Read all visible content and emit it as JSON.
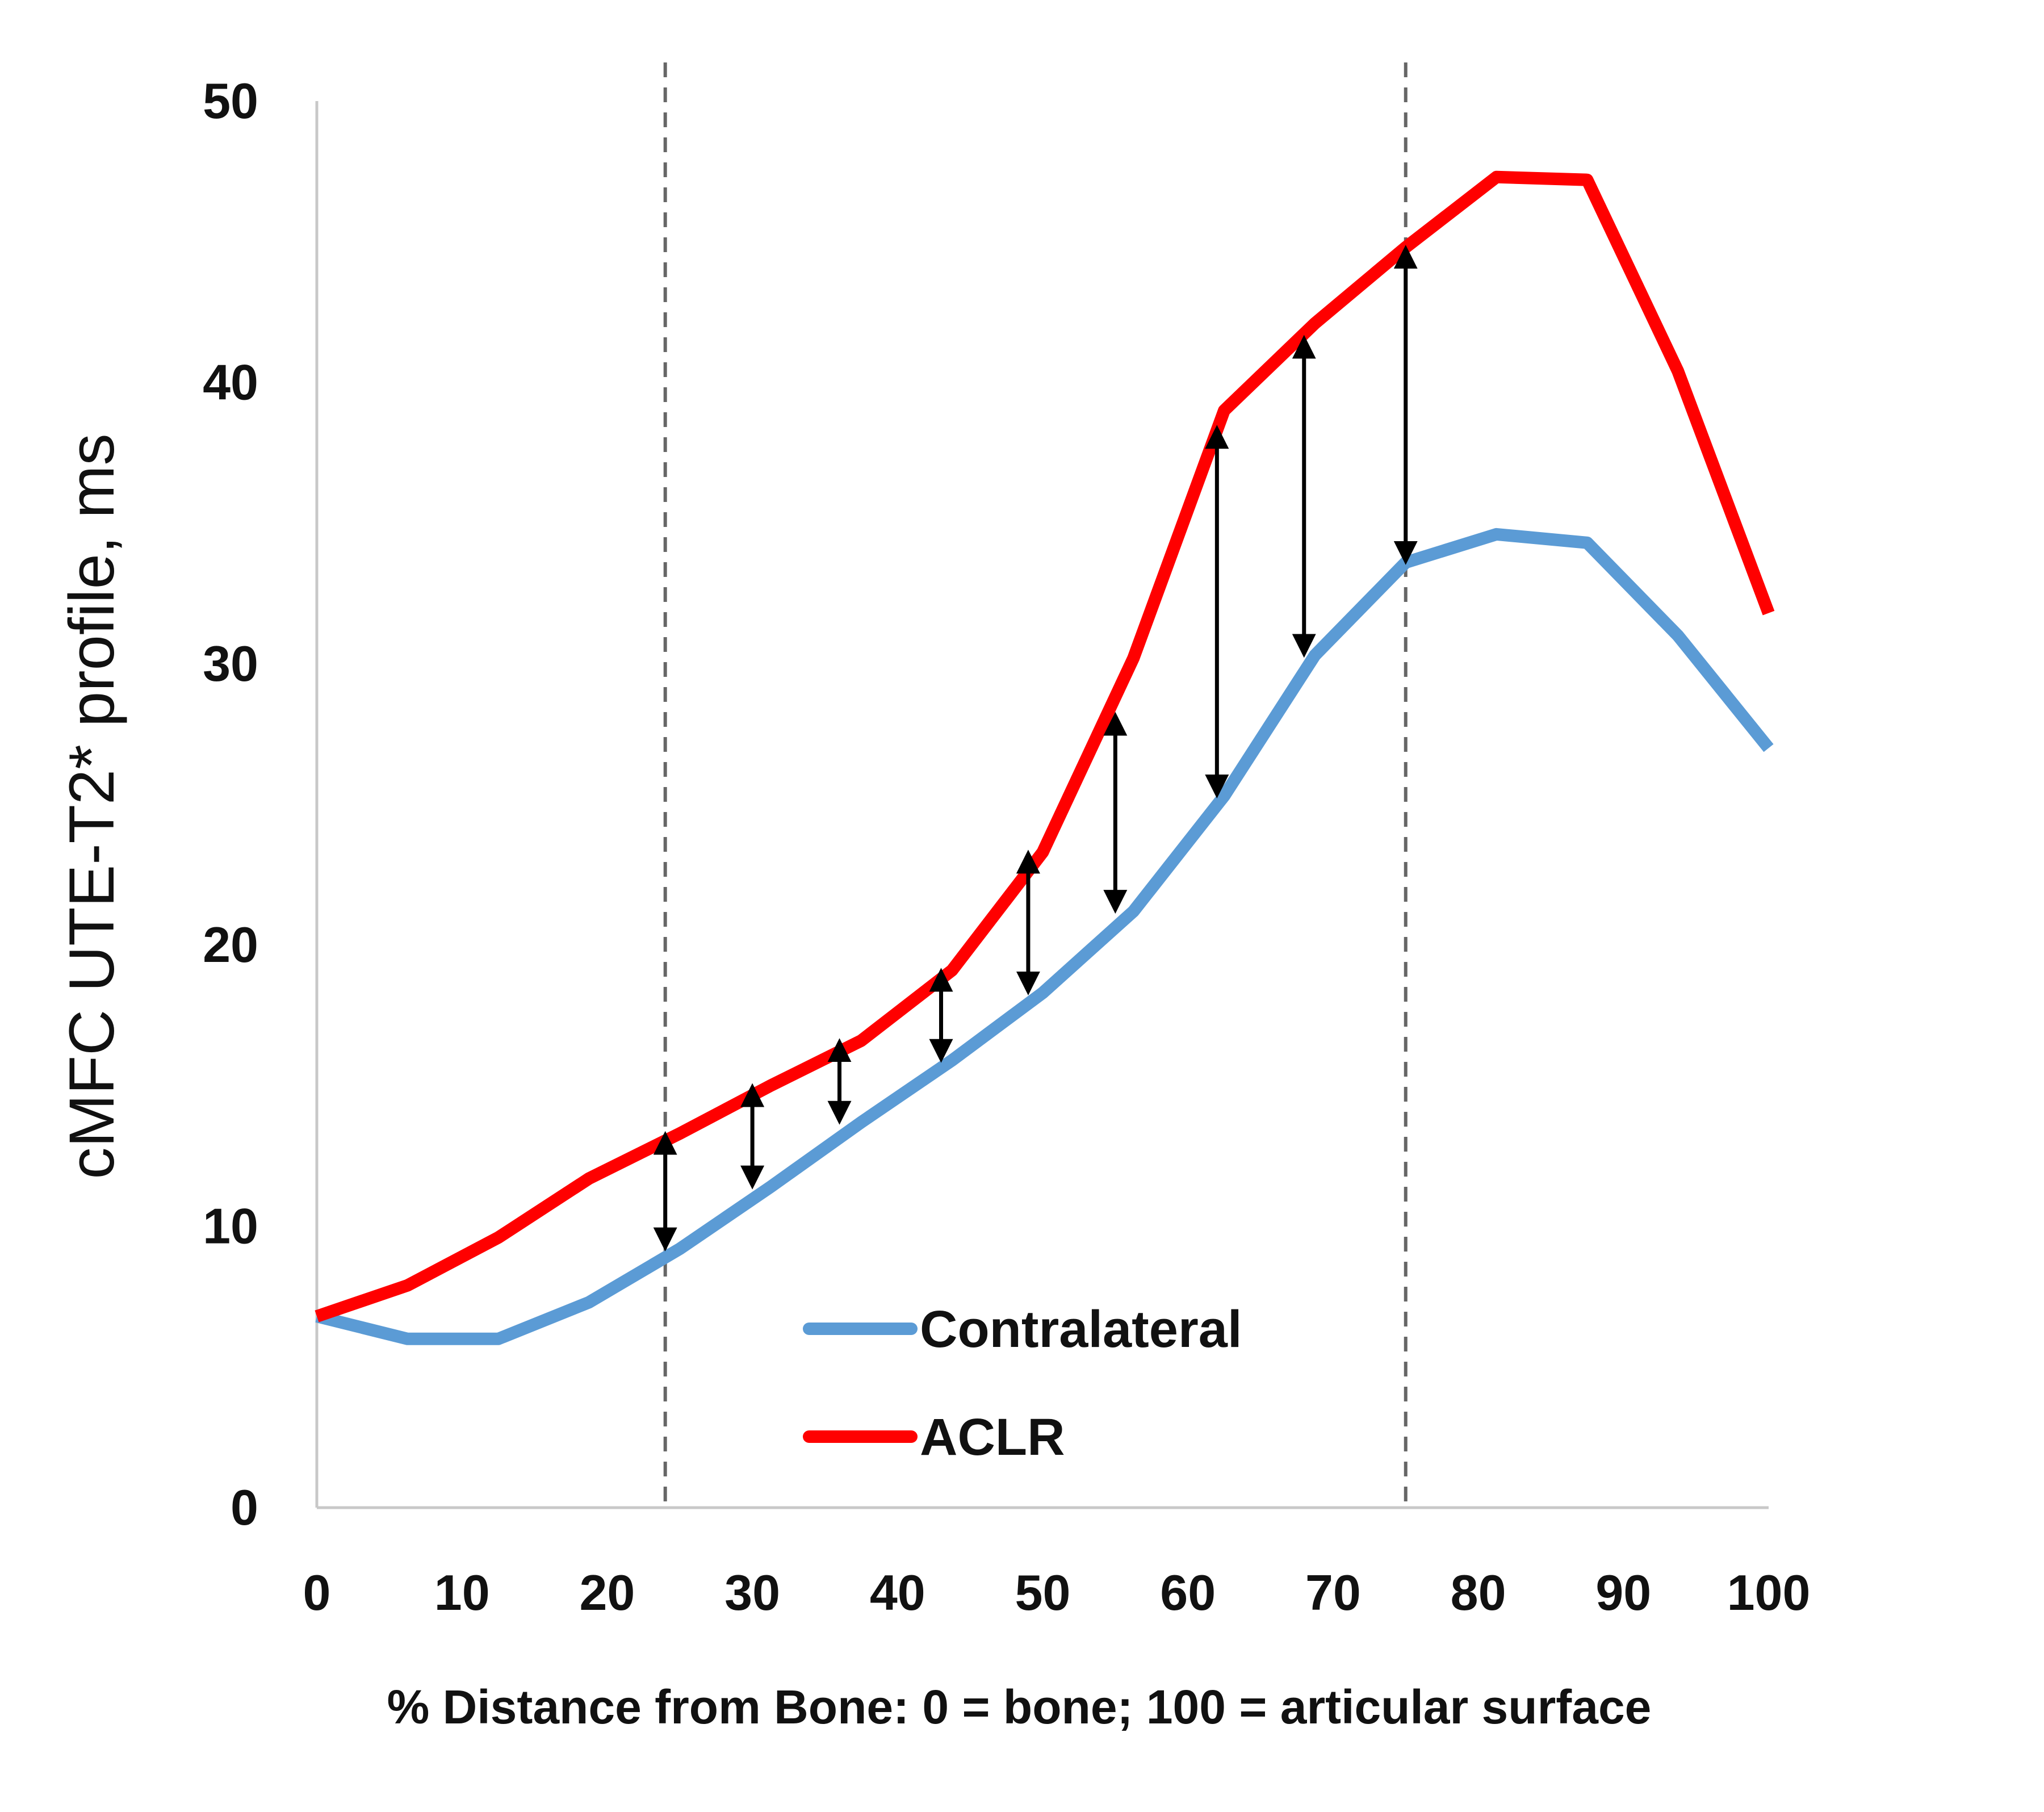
{
  "chart_data": {
    "type": "line",
    "xlabel": "% Distance from Bone:  0 = bone;  100 = articular surface",
    "ylabel": "cMFC UTE-T2* profile, ms",
    "xlim": [
      0,
      100
    ],
    "ylim": [
      0,
      50
    ],
    "x_ticks": [
      "0",
      "10",
      "20",
      "30",
      "40",
      "50",
      "60",
      "70",
      "80",
      "90",
      "100"
    ],
    "y_ticks": [
      "0",
      "10",
      "20",
      "30",
      "40",
      "50"
    ],
    "grid": false,
    "legend_position": "bottom-center",
    "x": [
      0,
      6.25,
      12.5,
      18.75,
      25,
      31.25,
      37.5,
      43.75,
      50,
      56.25,
      62.5,
      68.75,
      75,
      81.25,
      87.5,
      93.75,
      100
    ],
    "series": [
      {
        "name": "Contralateral",
        "color": "#5b9bd5",
        "values": [
          6.8,
          6.0,
          6.0,
          7.3,
          9.2,
          11.4,
          13.7,
          15.9,
          18.3,
          21.2,
          25.3,
          30.3,
          33.6,
          34.6,
          34.3,
          31.0,
          27.0
        ]
      },
      {
        "name": "ACLR",
        "color": "#ff0000",
        "values": [
          6.8,
          7.9,
          9.6,
          11.7,
          13.3,
          15.0,
          16.6,
          19.1,
          23.3,
          30.2,
          39.0,
          42.1,
          44.8,
          47.3,
          47.2,
          40.4,
          31.8
        ]
      }
    ],
    "annotations": {
      "vertical_dashed_lines_x": [
        24,
        75
      ],
      "difference_arrows": [
        {
          "x": 24,
          "from": 9.2,
          "to": 13.3
        },
        {
          "x": 30,
          "from": 11.4,
          "to": 15.0
        },
        {
          "x": 36,
          "from": 13.7,
          "to": 16.6
        },
        {
          "x": 43,
          "from": 15.9,
          "to": 19.1
        },
        {
          "x": 49,
          "from": 18.3,
          "to": 23.3
        },
        {
          "x": 55,
          "from": 21.2,
          "to": 28.2
        },
        {
          "x": 62,
          "from": 25.3,
          "to": 38.4
        },
        {
          "x": 68,
          "from": 30.3,
          "to": 41.6
        },
        {
          "x": 75,
          "from": 33.6,
          "to": 44.8
        }
      ]
    }
  }
}
